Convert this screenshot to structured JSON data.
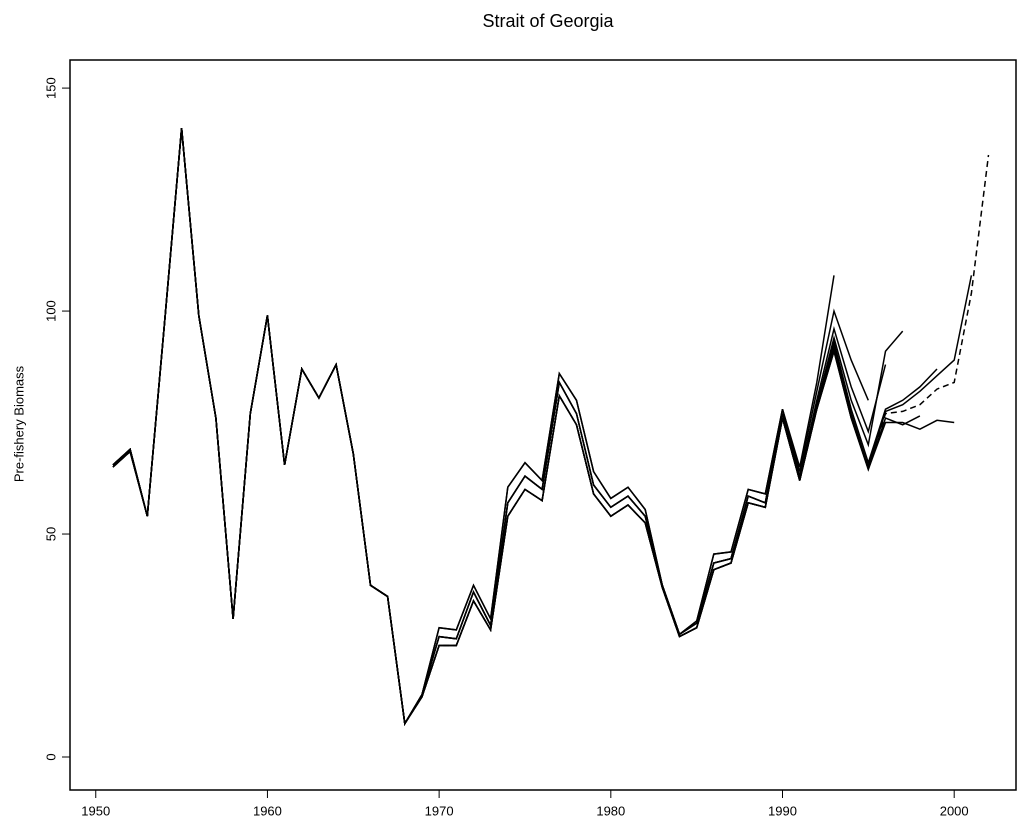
{
  "chart_data": {
    "type": "line",
    "title": "Strait of Georgia",
    "ylabel": "Pre-fishery Biomass",
    "x": [
      1951,
      1952,
      1953,
      1954,
      1955,
      1956,
      1957,
      1958,
      1959,
      1960,
      1961,
      1962,
      1963,
      1964,
      1965,
      1966,
      1967,
      1968,
      1969,
      1970,
      1971,
      1972,
      1973,
      1974,
      1975,
      1976,
      1977,
      1978,
      1979,
      1980,
      1981,
      1982,
      1983,
      1984,
      1985,
      1986,
      1987,
      1988,
      1989,
      1990,
      1991,
      1992,
      1993,
      1994,
      1995,
      1996,
      1997,
      1998,
      1999,
      2000,
      2001,
      2002
    ],
    "series": [
      {
        "color": "#000000",
        "linestyle": "solid",
        "values": [
          65.5,
          69,
          54,
          97,
          141,
          99,
          76,
          31,
          77,
          99,
          65.5,
          87,
          80.5,
          88,
          68,
          38.5,
          36,
          7.5,
          14,
          29,
          28.5,
          38.5,
          31,
          60.5,
          66,
          62,
          86,
          80,
          64,
          58,
          60.5,
          55.5,
          38.5,
          27.5,
          30.5,
          45.5,
          46,
          60,
          59,
          78,
          65,
          84,
          108,
          null,
          null,
          null,
          null,
          null,
          null,
          null,
          null,
          null
        ]
      },
      {
        "color": "#000000",
        "linestyle": "solid",
        "values": [
          65.5,
          69,
          54,
          97,
          141,
          99,
          76,
          31,
          77,
          99,
          65.5,
          87,
          80.5,
          88,
          68,
          38.5,
          36,
          7.5,
          14,
          29,
          28.5,
          38.5,
          31,
          60.5,
          66,
          62,
          86,
          80,
          64,
          58,
          60.5,
          55.5,
          38.5,
          27.5,
          30.5,
          45.5,
          46,
          60,
          59,
          78,
          64,
          82,
          100,
          89,
          80,
          null,
          null,
          null,
          null,
          null,
          null,
          null
        ]
      },
      {
        "color": "#000000",
        "linestyle": "solid",
        "values": [
          65.5,
          69,
          54,
          97,
          141,
          99,
          76,
          31,
          77,
          99,
          65.5,
          87,
          80.5,
          88,
          68,
          38.5,
          36,
          7.5,
          14,
          27,
          26.5,
          37,
          29.5,
          57,
          63,
          60,
          84,
          77,
          61,
          56,
          58.5,
          54,
          38.5,
          27.5,
          30,
          43.5,
          44.5,
          58.5,
          57,
          77,
          63,
          80,
          96,
          83,
          73,
          88,
          null,
          null,
          null,
          null,
          null,
          null
        ]
      },
      {
        "color": "#000000",
        "linestyle": "solid",
        "values": [
          65.5,
          69,
          54,
          97,
          141,
          99,
          76,
          31,
          77,
          99,
          65.5,
          87,
          80.5,
          88,
          68,
          38.5,
          36,
          7.5,
          14,
          27,
          26.5,
          37,
          29.5,
          57,
          63,
          60,
          84,
          77,
          61,
          56,
          58.5,
          54,
          38.5,
          27.5,
          30,
          43.5,
          44.5,
          58.5,
          57,
          77,
          63,
          79,
          94,
          80,
          70,
          91,
          95.5,
          null,
          null,
          null,
          null,
          null
        ]
      },
      {
        "color": "#000000",
        "linestyle": "solid",
        "values": [
          65,
          68.5,
          54,
          97,
          141,
          99,
          76,
          31,
          77,
          99,
          65.5,
          87,
          80.5,
          88,
          68,
          38.5,
          36,
          7.5,
          13.5,
          25,
          25,
          35,
          28.5,
          54,
          60,
          57.5,
          81,
          74.5,
          59,
          54,
          56.5,
          52.5,
          38,
          27,
          29,
          42,
          43.5,
          57,
          56,
          76,
          62,
          78,
          91,
          76,
          64.5,
          76,
          74.5,
          76.5,
          null,
          null,
          null,
          null
        ]
      },
      {
        "color": "#000000",
        "linestyle": "solid",
        "values": [
          65.5,
          69,
          54,
          97,
          141,
          99,
          76,
          31,
          77,
          99,
          65.5,
          87,
          80.5,
          88,
          68,
          38.5,
          36,
          7.5,
          14,
          27,
          26.5,
          37,
          29.5,
          57,
          63,
          60,
          84,
          77,
          61,
          56,
          58.5,
          54,
          38.5,
          27.5,
          30,
          43.5,
          44.5,
          58.5,
          57,
          77,
          62.5,
          79,
          93,
          78,
          66,
          78,
          80,
          83,
          87,
          null,
          null,
          null
        ]
      },
      {
        "color": "#000000",
        "linestyle": "solid",
        "values": [
          65,
          68.5,
          54,
          97,
          141,
          99,
          76,
          31,
          77,
          99,
          65.5,
          87,
          80.5,
          88,
          68,
          38.5,
          36,
          7.5,
          13.5,
          25,
          25,
          35,
          28.5,
          54,
          60,
          57.5,
          81,
          74.5,
          59,
          54,
          56.5,
          52.5,
          38,
          27,
          29,
          42,
          43.5,
          57,
          56,
          76,
          62,
          78,
          91,
          76,
          64.5,
          75,
          75,
          73.5,
          75.5,
          75,
          null,
          null
        ]
      },
      {
        "color": "#000000",
        "linestyle": "solid",
        "values": [
          65,
          68.5,
          54,
          97,
          141,
          99,
          76,
          31,
          77,
          99,
          65.5,
          87,
          80.5,
          88,
          68,
          38.5,
          36,
          7.5,
          13.5,
          25,
          25,
          35,
          28.5,
          54,
          60,
          57.5,
          81,
          74.5,
          59,
          54,
          56.5,
          52.5,
          38,
          27,
          29,
          42,
          43.5,
          57,
          56,
          76,
          62,
          78.5,
          92,
          77,
          65,
          77.5,
          79,
          82,
          85.5,
          89,
          108,
          null
        ]
      },
      {
        "color": "#000000",
        "linestyle": "dashed",
        "values": [
          65,
          68.5,
          54,
          97,
          141,
          99,
          76,
          31,
          77,
          99,
          65.5,
          87,
          80.5,
          88,
          68,
          38.5,
          36,
          7.5,
          13.5,
          25,
          25,
          35,
          28.5,
          54,
          60,
          57.5,
          81,
          74.5,
          59,
          54,
          56.5,
          52.5,
          38,
          27,
          29,
          42,
          43.5,
          57,
          56,
          76,
          62,
          78,
          91.5,
          76.5,
          65,
          77,
          77.5,
          79,
          82.5,
          84,
          104,
          135
        ]
      }
    ],
    "xlim": [
      1948.5,
      2003.6
    ],
    "xticks": [
      1950,
      1960,
      1970,
      1980,
      1990,
      2000
    ],
    "ylim": [
      -7.4,
      156.3
    ],
    "yticks": [
      0,
      50,
      100,
      150
    ],
    "grid": false
  }
}
